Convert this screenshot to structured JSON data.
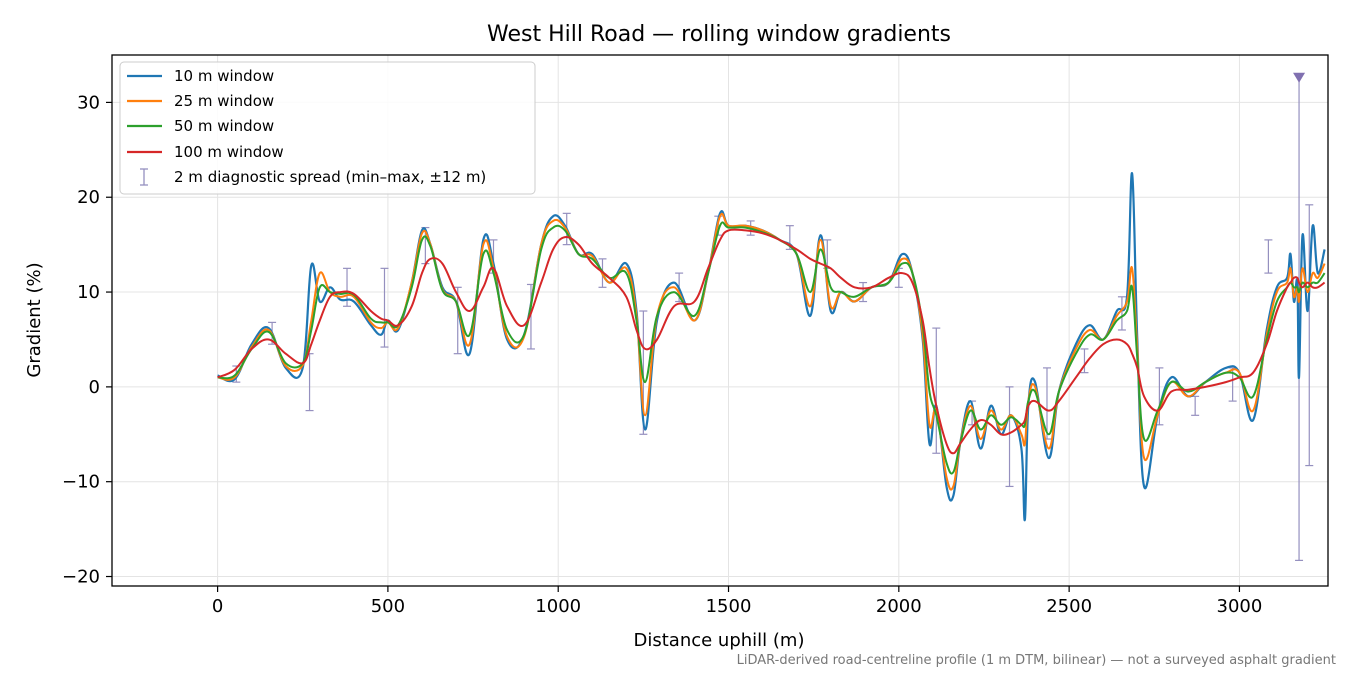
{
  "chart_data": {
    "type": "line",
    "title": "West Hill Road — rolling window gradients",
    "xlabel": "Distance uphill (m)",
    "ylabel": "Gradient (%)",
    "xlim": [
      -310,
      3260
    ],
    "ylim": [
      -21,
      35
    ],
    "xticks": [
      0,
      500,
      1000,
      1500,
      2000,
      2500,
      3000
    ],
    "yticks": [
      -20,
      -10,
      0,
      10,
      20,
      30
    ],
    "xtick_labels": [
      "0",
      "500",
      "1000",
      "1500",
      "2000",
      "2500",
      "3000"
    ],
    "ytick_labels": [
      "−20",
      "−10",
      "0",
      "10",
      "20",
      "30"
    ],
    "grid": true,
    "legend_position": "top-left",
    "footnote": "LiDAR-derived road-centreline profile (1 m DTM, bilinear) — not a surveyed asphalt gradient",
    "series": [
      {
        "name": "10 m window",
        "color": "#1f77b4",
        "x": [
          0,
          50,
          100,
          150,
          200,
          250,
          275,
          300,
          330,
          360,
          400,
          450,
          480,
          500,
          530,
          570,
          600,
          625,
          660,
          700,
          740,
          780,
          810,
          850,
          900,
          950,
          985,
          1020,
          1060,
          1100,
          1150,
          1200,
          1230,
          1255,
          1290,
          1340,
          1400,
          1440,
          1475,
          1500,
          1550,
          1600,
          1650,
          1700,
          1740,
          1770,
          1800,
          1830,
          1870,
          1920,
          1970,
          2010,
          2040,
          2070,
          2090,
          2110,
          2140,
          2160,
          2180,
          2210,
          2240,
          2270,
          2300,
          2330,
          2360,
          2370,
          2380,
          2400,
          2440,
          2470,
          2520,
          2560,
          2600,
          2640,
          2670,
          2685,
          2700,
          2720,
          2760,
          2800,
          2850,
          2900,
          2960,
          3000,
          3040,
          3080,
          3110,
          3140,
          3150,
          3160,
          3170,
          3175,
          3185,
          3200,
          3215,
          3230,
          3250
        ],
        "y": [
          1.2,
          0.8,
          4.5,
          6.2,
          2.0,
          2.0,
          12.8,
          9.0,
          10.5,
          9.2,
          9.0,
          6.5,
          5.5,
          7.0,
          6.0,
          11.0,
          16.5,
          15.0,
          10.5,
          9.0,
          3.5,
          15.5,
          13.0,
          5.0,
          5.5,
          15.0,
          18.0,
          17.0,
          14.0,
          14.0,
          11.0,
          13.0,
          8.0,
          -4.5,
          7.0,
          11.0,
          7.0,
          12.0,
          18.3,
          17.0,
          17.0,
          16.5,
          15.5,
          14.0,
          7.5,
          16.0,
          8.0,
          10.0,
          9.0,
          10.5,
          11.0,
          14.0,
          12.0,
          5.0,
          -6.0,
          -2.0,
          -10.5,
          -11.5,
          -6.0,
          -1.5,
          -6.5,
          -2.0,
          -5.0,
          -3.0,
          -6.5,
          -14.0,
          -2.0,
          0.5,
          -7.5,
          -0.5,
          4.5,
          6.5,
          5.0,
          8.0,
          9.5,
          22.5,
          5.0,
          -10.5,
          -3.0,
          1.0,
          -1.0,
          0.5,
          2.0,
          1.5,
          -3.5,
          6.0,
          10.5,
          11.5,
          14.0,
          9.0,
          11.0,
          1.0,
          16.0,
          8.0,
          17.0,
          12.0,
          14.5
        ]
      },
      {
        "name": "25 m window",
        "color": "#ff7f0e",
        "x": [
          0,
          50,
          100,
          150,
          200,
          250,
          275,
          300,
          330,
          360,
          400,
          450,
          480,
          500,
          530,
          570,
          600,
          625,
          660,
          700,
          740,
          780,
          810,
          850,
          900,
          950,
          985,
          1020,
          1060,
          1100,
          1150,
          1200,
          1230,
          1255,
          1290,
          1340,
          1400,
          1440,
          1475,
          1500,
          1550,
          1600,
          1650,
          1700,
          1740,
          1770,
          1800,
          1830,
          1870,
          1920,
          1970,
          2010,
          2040,
          2070,
          2090,
          2110,
          2140,
          2160,
          2180,
          2210,
          2240,
          2270,
          2300,
          2330,
          2360,
          2370,
          2380,
          2400,
          2440,
          2470,
          2520,
          2560,
          2600,
          2640,
          2670,
          2685,
          2700,
          2720,
          2760,
          2800,
          2850,
          2900,
          2960,
          3000,
          3040,
          3080,
          3110,
          3140,
          3150,
          3160,
          3170,
          3175,
          3185,
          3200,
          3215,
          3230,
          3250
        ],
        "y": [
          1.0,
          1.0,
          4.2,
          6.0,
          2.2,
          2.3,
          7.0,
          12.0,
          10.0,
          9.5,
          9.5,
          6.8,
          6.2,
          6.8,
          6.2,
          11.0,
          16.2,
          15.0,
          10.3,
          9.0,
          4.5,
          15.0,
          12.5,
          5.3,
          5.3,
          15.0,
          17.5,
          16.8,
          14.0,
          13.8,
          11.0,
          12.5,
          7.5,
          -3.0,
          7.5,
          10.5,
          7.0,
          12.0,
          18.0,
          17.0,
          17.0,
          16.5,
          15.5,
          14.0,
          8.5,
          15.5,
          8.5,
          10.0,
          9.0,
          10.5,
          11.0,
          13.5,
          12.0,
          5.5,
          -4.0,
          -2.5,
          -9.5,
          -10.5,
          -6.0,
          -2.0,
          -5.5,
          -2.5,
          -4.5,
          -3.0,
          -5.0,
          -6.0,
          -1.5,
          0.0,
          -6.5,
          -0.5,
          4.0,
          6.0,
          5.0,
          7.5,
          9.0,
          12.5,
          4.0,
          -7.5,
          -3.0,
          0.5,
          -1.0,
          0.5,
          1.5,
          1.5,
          -2.5,
          5.5,
          10.0,
          11.0,
          12.5,
          9.5,
          10.5,
          9.0,
          12.5,
          10.0,
          12.0,
          11.5,
          13.0
        ]
      },
      {
        "name": "50 m window",
        "color": "#2ca02c",
        "x": [
          0,
          50,
          100,
          150,
          200,
          250,
          275,
          300,
          330,
          360,
          400,
          450,
          480,
          500,
          530,
          570,
          600,
          625,
          660,
          700,
          740,
          780,
          810,
          850,
          900,
          950,
          985,
          1020,
          1060,
          1100,
          1150,
          1200,
          1230,
          1255,
          1290,
          1340,
          1400,
          1440,
          1475,
          1500,
          1550,
          1600,
          1650,
          1700,
          1740,
          1770,
          1800,
          1830,
          1870,
          1920,
          1970,
          2010,
          2040,
          2070,
          2090,
          2110,
          2140,
          2160,
          2180,
          2210,
          2240,
          2270,
          2300,
          2330,
          2360,
          2370,
          2380,
          2400,
          2440,
          2470,
          2520,
          2560,
          2600,
          2640,
          2670,
          2685,
          2700,
          2720,
          2760,
          2800,
          2850,
          2900,
          2960,
          3000,
          3040,
          3080,
          3110,
          3140,
          3150,
          3160,
          3170,
          3175,
          3185,
          3200,
          3215,
          3230,
          3250
        ],
        "y": [
          1.0,
          1.2,
          4.0,
          5.8,
          2.5,
          2.5,
          6.0,
          10.5,
          10.0,
          9.8,
          9.7,
          7.2,
          6.8,
          6.8,
          6.5,
          10.5,
          15.5,
          14.8,
          10.2,
          9.0,
          5.5,
          14.0,
          12.0,
          6.0,
          5.5,
          14.5,
          16.8,
          16.5,
          14.0,
          13.5,
          11.5,
          12.0,
          7.0,
          0.5,
          7.5,
          10.0,
          7.5,
          12.0,
          17.0,
          16.8,
          16.8,
          16.3,
          15.5,
          14.0,
          10.0,
          14.5,
          10.5,
          10.0,
          9.5,
          10.5,
          11.0,
          13.0,
          12.0,
          6.5,
          -0.5,
          -3.0,
          -8.0,
          -9.0,
          -6.0,
          -2.5,
          -4.5,
          -3.0,
          -4.0,
          -3.2,
          -4.0,
          -4.0,
          -1.5,
          -0.5,
          -5.0,
          -0.5,
          3.5,
          5.5,
          5.0,
          7.0,
          8.0,
          10.5,
          3.0,
          -5.5,
          -2.5,
          0.5,
          -0.5,
          0.5,
          1.5,
          1.0,
          -1.0,
          5.0,
          9.0,
          10.5,
          11.0,
          10.5,
          10.5,
          10.0,
          11.0,
          10.5,
          11.0,
          11.0,
          12.0
        ]
      },
      {
        "name": "100 m window",
        "color": "#d62728",
        "x": [
          0,
          50,
          100,
          150,
          200,
          250,
          275,
          300,
          330,
          360,
          400,
          450,
          480,
          500,
          530,
          570,
          600,
          625,
          660,
          700,
          740,
          780,
          810,
          850,
          900,
          950,
          985,
          1020,
          1060,
          1100,
          1150,
          1200,
          1230,
          1255,
          1290,
          1340,
          1400,
          1440,
          1475,
          1500,
          1550,
          1600,
          1650,
          1700,
          1740,
          1770,
          1800,
          1830,
          1870,
          1920,
          1970,
          2010,
          2040,
          2070,
          2090,
          2110,
          2140,
          2160,
          2180,
          2210,
          2240,
          2270,
          2300,
          2330,
          2360,
          2370,
          2380,
          2400,
          2440,
          2470,
          2520,
          2560,
          2600,
          2640,
          2670,
          2685,
          2700,
          2720,
          2760,
          2800,
          2850,
          2900,
          2960,
          3000,
          3040,
          3080,
          3110,
          3140,
          3150,
          3160,
          3170,
          3175,
          3185,
          3200,
          3215,
          3230,
          3250
        ],
        "y": [
          1.0,
          1.8,
          4.0,
          5.0,
          3.5,
          2.5,
          4.5,
          7.0,
          9.5,
          10.0,
          9.8,
          8.0,
          7.2,
          7.0,
          6.5,
          8.5,
          12.0,
          13.5,
          13.0,
          10.0,
          8.0,
          10.5,
          12.5,
          8.5,
          6.5,
          11.0,
          14.5,
          15.8,
          15.0,
          13.0,
          11.5,
          9.5,
          6.0,
          4.0,
          5.0,
          8.5,
          9.0,
          12.5,
          15.5,
          16.5,
          16.5,
          16.2,
          15.5,
          14.5,
          13.5,
          13.0,
          12.5,
          11.5,
          10.5,
          10.5,
          11.5,
          12.0,
          11.0,
          7.0,
          2.0,
          -2.0,
          -6.0,
          -7.0,
          -6.0,
          -4.5,
          -3.5,
          -4.0,
          -5.0,
          -4.8,
          -4.0,
          -3.5,
          -2.0,
          -1.5,
          -2.5,
          -1.5,
          1.0,
          3.0,
          4.5,
          5.0,
          4.5,
          3.5,
          2.0,
          -1.0,
          -2.5,
          -0.5,
          -0.3,
          0.0,
          0.5,
          1.0,
          1.5,
          4.5,
          8.0,
          10.5,
          11.0,
          11.5,
          11.5,
          11.0,
          10.5,
          11.0,
          10.5,
          10.5,
          11.0
        ]
      }
    ],
    "error_bars": {
      "name": "2 m diagnostic spread (min–max, ±12 m)",
      "color": "#9590bf",
      "points": [
        {
          "x": 55,
          "low": 0.5,
          "high": 2.2
        },
        {
          "x": 160,
          "low": 4.5,
          "high": 6.8
        },
        {
          "x": 270,
          "low": -2.5,
          "high": 3.5
        },
        {
          "x": 380,
          "low": 8.5,
          "high": 12.5
        },
        {
          "x": 490,
          "low": 4.2,
          "high": 12.5
        },
        {
          "x": 610,
          "low": 13.0,
          "high": 16.8
        },
        {
          "x": 705,
          "low": 3.5,
          "high": 10.5
        },
        {
          "x": 810,
          "low": 12.0,
          "high": 15.5
        },
        {
          "x": 920,
          "low": 4.0,
          "high": 10.8
        },
        {
          "x": 1025,
          "low": 15.0,
          "high": 18.3
        },
        {
          "x": 1130,
          "low": 10.5,
          "high": 13.5
        },
        {
          "x": 1250,
          "low": -5.0,
          "high": 8.0
        },
        {
          "x": 1355,
          "low": 9.0,
          "high": 12.0
        },
        {
          "x": 1470,
          "low": 16.0,
          "high": 18.0
        },
        {
          "x": 1565,
          "low": 16.0,
          "high": 17.5
        },
        {
          "x": 1680,
          "low": 14.5,
          "high": 17.0
        },
        {
          "x": 1790,
          "low": 12.5,
          "high": 15.5
        },
        {
          "x": 1895,
          "low": 9.0,
          "high": 11.0
        },
        {
          "x": 2000,
          "low": 10.5,
          "high": 12.5
        },
        {
          "x": 2110,
          "low": -7.0,
          "high": 6.2
        },
        {
          "x": 2215,
          "low": -4.0,
          "high": -1.5
        },
        {
          "x": 2325,
          "low": -10.5,
          "high": 0.0
        },
        {
          "x": 2435,
          "low": -5.5,
          "high": 2.0
        },
        {
          "x": 2545,
          "low": 1.5,
          "high": 4.0
        },
        {
          "x": 2655,
          "low": 6.0,
          "high": 9.5
        },
        {
          "x": 2765,
          "low": -4.0,
          "high": 2.0
        },
        {
          "x": 2870,
          "low": -3.0,
          "high": -1.0
        },
        {
          "x": 2980,
          "low": -1.5,
          "high": 2.0
        },
        {
          "x": 3085,
          "low": 12.0,
          "high": 15.5
        },
        {
          "x": 3175,
          "low": -18.3,
          "high": 32.5,
          "arrow": true
        },
        {
          "x": 3205,
          "low": -8.3,
          "high": 19.2
        }
      ]
    }
  }
}
